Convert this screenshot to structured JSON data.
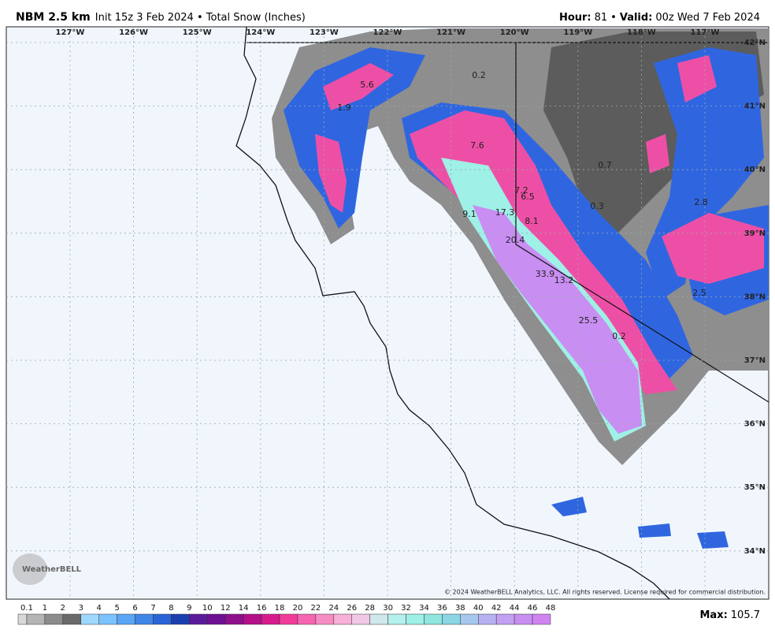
{
  "header": {
    "model": "NBM 2.5 km",
    "subtitle": "Init 15z 3 Feb 2024 • Total Snow (Inches)",
    "hour_label": "Hour:",
    "hour": "81",
    "separator": "•",
    "valid_label": "Valid:",
    "valid": "00z Wed 7 Feb 2024"
  },
  "map": {
    "longitude_labels": [
      "127°W",
      "126°W",
      "125°W",
      "124°W",
      "123°W",
      "122°W",
      "121°W",
      "120°W",
      "119°W",
      "118°W",
      "117°W"
    ],
    "latitude_labels": [
      "42°N",
      "41°N",
      "40°N",
      "39°N",
      "38°N",
      "37°N",
      "36°N",
      "35°N",
      "34°N"
    ],
    "point_values": [
      "5.6",
      "1.9",
      "0.2",
      "7.6",
      "0.7",
      "7.2",
      "6.5",
      "0.3",
      "2.8",
      "17.3",
      "9.1",
      "8.1",
      "20.4",
      "33.9",
      "13.2",
      "25.5",
      "0.2",
      "2.5"
    ],
    "logo": "WeatherBELL",
    "copyright": "© 2024 WeatherBELL Analytics, LLC. All rights reserved. License required for commercial distribution."
  },
  "colorbar": {
    "labels": [
      "0.1",
      "1",
      "2",
      "3",
      "4",
      "5",
      "6",
      "7",
      "8",
      "9",
      "10",
      "12",
      "14",
      "16",
      "18",
      "20",
      "22",
      "24",
      "26",
      "28",
      "30",
      "32",
      "34",
      "36",
      "38",
      "40",
      "42",
      "44",
      "46",
      "48"
    ]
  },
  "max": {
    "label": "Max:",
    "value": "105.7"
  }
}
